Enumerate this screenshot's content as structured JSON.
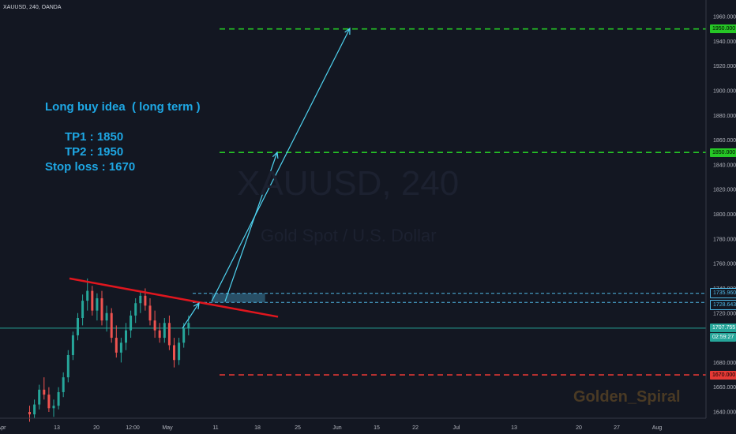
{
  "header": {
    "symbol_line": "XAUUSD, 240, OANDA"
  },
  "watermark": {
    "symbol": "XAUUSD, 240",
    "description": "Gold Spot / U.S. Dollar"
  },
  "idea": {
    "title": "Long buy idea  ( long term )",
    "tp1": "TP1 : 1850",
    "tp2": "TP2 : 1950",
    "stop": "Stop loss : 1670"
  },
  "signature": "Golden_Spiral",
  "chart_data": {
    "type": "candlestick",
    "y_ticks": [
      1640,
      1660,
      1680,
      1700,
      1720,
      1740,
      1760,
      1780,
      1800,
      1820,
      1840,
      1860,
      1880,
      1900,
      1920,
      1940,
      1960
    ],
    "x_ticks": [
      {
        "label": "Apr"
      },
      {
        "label": "13"
      },
      {
        "label": "20"
      },
      {
        "label": "12:00"
      },
      {
        "label": "May"
      },
      {
        "label": "11"
      },
      {
        "label": "18"
      },
      {
        "label": "25"
      },
      {
        "label": "Jun"
      },
      {
        "label": "15"
      },
      {
        "label": "22"
      },
      {
        "label": "Jul"
      },
      {
        "label": "13"
      },
      {
        "label": "20"
      },
      {
        "label": "27"
      },
      {
        "label": "Aug"
      }
    ],
    "price_levels": [
      {
        "name": "tp2",
        "value": 1950,
        "label": "1950.000",
        "color": "#26c726",
        "style": "dashed"
      },
      {
        "name": "tp1",
        "value": 1850,
        "label": "1850.000",
        "color": "#26c726",
        "style": "dashed"
      },
      {
        "name": "zone-top",
        "value": 1735.96,
        "label": "1735.960",
        "color": "#4fb8e6",
        "style": "dashed"
      },
      {
        "name": "zone-bottom",
        "value": 1728.643,
        "label": "1728.643",
        "color": "#4fb8e6",
        "style": "dashed"
      },
      {
        "name": "current",
        "value": 1707.755,
        "label": "1707.755",
        "color": "#26a69a",
        "style": "solid"
      },
      {
        "name": "stop-loss",
        "value": 1670,
        "label": "1670.000",
        "color": "#e53935",
        "style": "dashed"
      }
    ],
    "countdown": "02:59:27",
    "candles": [
      [
        1640,
        1645,
        1632,
        1638
      ],
      [
        1638,
        1650,
        1635,
        1646
      ],
      [
        1646,
        1662,
        1642,
        1658
      ],
      [
        1658,
        1668,
        1650,
        1654
      ],
      [
        1654,
        1660,
        1640,
        1643
      ],
      [
        1643,
        1650,
        1636,
        1645
      ],
      [
        1645,
        1660,
        1642,
        1656
      ],
      [
        1656,
        1672,
        1652,
        1668
      ],
      [
        1668,
        1690,
        1664,
        1686
      ],
      [
        1686,
        1705,
        1682,
        1702
      ],
      [
        1702,
        1720,
        1698,
        1716
      ],
      [
        1716,
        1735,
        1710,
        1730
      ],
      [
        1730,
        1748,
        1722,
        1738
      ],
      [
        1738,
        1742,
        1718,
        1722
      ],
      [
        1722,
        1736,
        1714,
        1732
      ],
      [
        1732,
        1738,
        1710,
        1714
      ],
      [
        1714,
        1726,
        1705,
        1720
      ],
      [
        1720,
        1724,
        1696,
        1700
      ],
      [
        1700,
        1710,
        1684,
        1688
      ],
      [
        1688,
        1700,
        1680,
        1696
      ],
      [
        1696,
        1712,
        1690,
        1706
      ],
      [
        1706,
        1722,
        1700,
        1718
      ],
      [
        1718,
        1732,
        1712,
        1728
      ],
      [
        1728,
        1738,
        1720,
        1734
      ],
      [
        1734,
        1740,
        1722,
        1726
      ],
      [
        1726,
        1732,
        1710,
        1714
      ],
      [
        1714,
        1722,
        1700,
        1706
      ],
      [
        1706,
        1712,
        1696,
        1700
      ],
      [
        1700,
        1716,
        1696,
        1712
      ],
      [
        1712,
        1718,
        1690,
        1694
      ],
      [
        1694,
        1700,
        1676,
        1682
      ],
      [
        1682,
        1700,
        1678,
        1696
      ],
      [
        1696,
        1712,
        1692,
        1708
      ],
      [
        1708,
        1718,
        1702,
        1712
      ]
    ],
    "trendline": {
      "from": {
        "candle": 6,
        "price": 1748
      },
      "to": {
        "candle": 60,
        "price": 1717
      },
      "color": "#e0161e"
    },
    "entry_zone": {
      "from_candle": 34,
      "to_candle": 47,
      "top": 1735.96,
      "bottom": 1728.643
    },
    "arrows": [
      {
        "from": {
          "candle": 34,
          "price": 1712
        },
        "to": {
          "candle": 37,
          "price": 1730
        }
      },
      {
        "from": {
          "candle": 38,
          "price": 1730
        },
        "to": {
          "candle": 80,
          "price": 1950
        }
      },
      {
        "from": {
          "candle": 40,
          "price": 1730
        },
        "to": {
          "candle": 63,
          "price": 1850
        }
      }
    ]
  }
}
